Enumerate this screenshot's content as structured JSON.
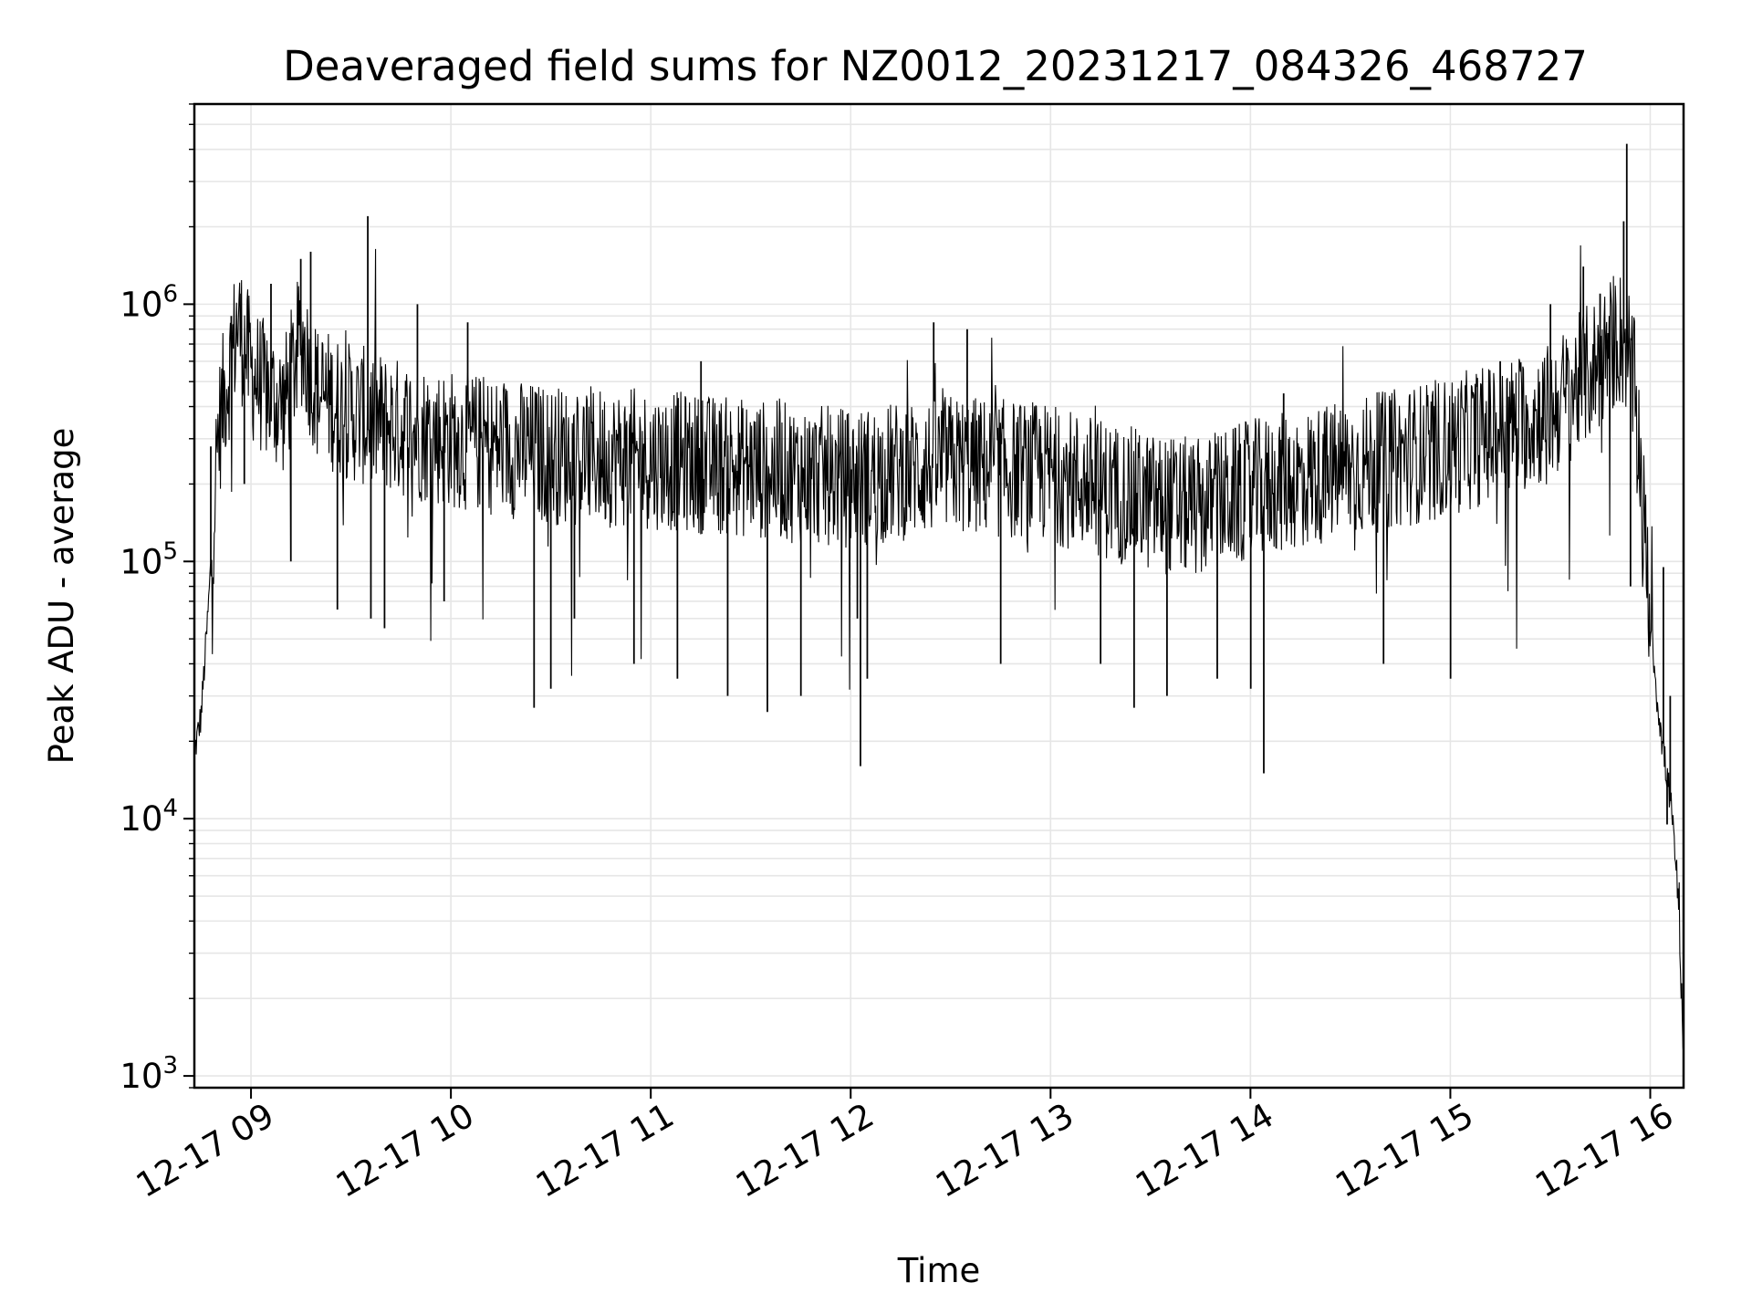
{
  "chart_data": {
    "type": "line",
    "title": "Deaveraged field sums for NZ0012_20231217_084326_468727",
    "xlabel": "Time",
    "ylabel": "Peak ADU - average",
    "yscale": "log",
    "xlim": [
      "2023-12-17 08:43",
      "2023-12-17 16:10"
    ],
    "ylim": [
      900,
      6000000
    ],
    "x_ticks": [
      {
        "value": "2023-12-17 09:00",
        "label": "12-17 09"
      },
      {
        "value": "2023-12-17 10:00",
        "label": "12-17 10"
      },
      {
        "value": "2023-12-17 11:00",
        "label": "12-17 11"
      },
      {
        "value": "2023-12-17 12:00",
        "label": "12-17 12"
      },
      {
        "value": "2023-12-17 13:00",
        "label": "12-17 13"
      },
      {
        "value": "2023-12-17 14:00",
        "label": "12-17 14"
      },
      {
        "value": "2023-12-17 15:00",
        "label": "12-17 15"
      },
      {
        "value": "2023-12-17 16:00",
        "label": "12-17 16"
      }
    ],
    "y_ticks": [
      {
        "value": 1000,
        "base": "10",
        "exp": "3"
      },
      {
        "value": 10000,
        "base": "10",
        "exp": "4"
      },
      {
        "value": 100000,
        "base": "10",
        "exp": "5"
      },
      {
        "value": 1000000,
        "base": "10",
        "exp": "6"
      }
    ],
    "grid": true,
    "line_color": "#000000",
    "grid_color": "#e6e6e6",
    "series": [
      {
        "points": [
          [
            "2023-12-17 08:43",
            18000
          ],
          [
            "2023-12-17 08:45",
            25000
          ],
          [
            "2023-12-17 08:47",
            60000
          ],
          [
            "2023-12-17 08:48",
            100000
          ],
          [
            "2023-12-17 08:50",
            300000
          ],
          [
            "2023-12-17 08:52",
            450000
          ],
          [
            "2023-12-17 08:54",
            600000
          ],
          [
            "2023-12-17 08:56",
            850000
          ],
          [
            "2023-12-17 08:58",
            700000
          ],
          [
            "2023-12-17 09:00",
            550000
          ],
          [
            "2023-12-17 09:05",
            450000
          ],
          [
            "2023-12-17 09:10",
            400000
          ],
          [
            "2023-12-17 09:15",
            750000
          ],
          [
            "2023-12-17 09:20",
            450000
          ],
          [
            "2023-12-17 09:30",
            380000
          ],
          [
            "2023-12-17 09:45",
            330000
          ],
          [
            "2023-12-17 10:00",
            300000
          ],
          [
            "2023-12-17 10:30",
            260000
          ],
          [
            "2023-12-17 11:00",
            250000
          ],
          [
            "2023-12-17 11:30",
            230000
          ],
          [
            "2023-12-17 12:00",
            210000
          ],
          [
            "2023-12-17 12:30",
            240000
          ],
          [
            "2023-12-17 13:00",
            220000
          ],
          [
            "2023-12-17 13:30",
            170000
          ],
          [
            "2023-12-17 13:45",
            160000
          ],
          [
            "2023-12-17 14:00",
            190000
          ],
          [
            "2023-12-17 14:30",
            230000
          ],
          [
            "2023-12-17 15:00",
            280000
          ],
          [
            "2023-12-17 15:30",
            380000
          ],
          [
            "2023-12-17 15:45",
            600000
          ],
          [
            "2023-12-17 15:50",
            750000
          ],
          [
            "2023-12-17 15:53",
            700000
          ],
          [
            "2023-12-17 15:56",
            400000
          ],
          [
            "2023-12-17 15:58",
            150000
          ],
          [
            "2023-12-17 16:00",
            60000
          ],
          [
            "2023-12-17 16:02",
            30000
          ],
          [
            "2023-12-17 16:04",
            18000
          ],
          [
            "2023-12-17 16:06",
            12000
          ],
          [
            "2023-12-17 16:08",
            6000
          ],
          [
            "2023-12-17 16:10",
            1300
          ]
        ],
        "spikes": [
          [
            "2023-12-17 08:48",
            280000
          ],
          [
            "2023-12-17 08:54",
            900000
          ],
          [
            "2023-12-17 08:57",
            1100000
          ],
          [
            "2023-12-17 08:58",
            200000
          ],
          [
            "2023-12-17 09:06",
            1200000
          ],
          [
            "2023-12-17 09:12",
            100000
          ],
          [
            "2023-12-17 09:15",
            1500000
          ],
          [
            "2023-12-17 09:18",
            1600000
          ],
          [
            "2023-12-17 09:26",
            65000
          ],
          [
            "2023-12-17 09:35",
            2200000
          ],
          [
            "2023-12-17 09:36",
            60000
          ],
          [
            "2023-12-17 09:40",
            55000
          ],
          [
            "2023-12-17 09:50",
            1000000
          ],
          [
            "2023-12-17 09:58",
            70000
          ],
          [
            "2023-12-17 10:05",
            850000
          ],
          [
            "2023-12-17 10:25",
            27000
          ],
          [
            "2023-12-17 10:30",
            32000
          ],
          [
            "2023-12-17 10:37",
            60000
          ],
          [
            "2023-12-17 10:55",
            40000
          ],
          [
            "2023-12-17 11:08",
            35000
          ],
          [
            "2023-12-17 11:15",
            600000
          ],
          [
            "2023-12-17 11:23",
            30000
          ],
          [
            "2023-12-17 11:35",
            26000
          ],
          [
            "2023-12-17 11:45",
            30000
          ],
          [
            "2023-12-17 12:02",
            60000
          ],
          [
            "2023-12-17 12:03",
            16000
          ],
          [
            "2023-12-17 12:05",
            35000
          ],
          [
            "2023-12-17 12:25",
            850000
          ],
          [
            "2023-12-17 12:35",
            800000
          ],
          [
            "2023-12-17 12:45",
            40000
          ],
          [
            "2023-12-17 13:15",
            40000
          ],
          [
            "2023-12-17 13:25",
            27000
          ],
          [
            "2023-12-17 13:35",
            30000
          ],
          [
            "2023-12-17 13:50",
            35000
          ],
          [
            "2023-12-17 14:00",
            32000
          ],
          [
            "2023-12-17 14:04",
            15000
          ],
          [
            "2023-12-17 14:10",
            450000
          ],
          [
            "2023-12-17 14:40",
            40000
          ],
          [
            "2023-12-17 15:00",
            35000
          ],
          [
            "2023-12-17 15:15",
            600000
          ],
          [
            "2023-12-17 15:30",
            1000000
          ],
          [
            "2023-12-17 15:40",
            1400000
          ],
          [
            "2023-12-17 15:45",
            1100000
          ],
          [
            "2023-12-17 15:52",
            2100000
          ],
          [
            "2023-12-17 15:53",
            4200000
          ],
          [
            "2023-12-17 15:54",
            80000
          ],
          [
            "2023-12-17 16:04",
            95000
          ],
          [
            "2023-12-17 16:06",
            30000
          ],
          [
            "2023-12-17 16:05",
            9500
          ]
        ]
      }
    ]
  }
}
